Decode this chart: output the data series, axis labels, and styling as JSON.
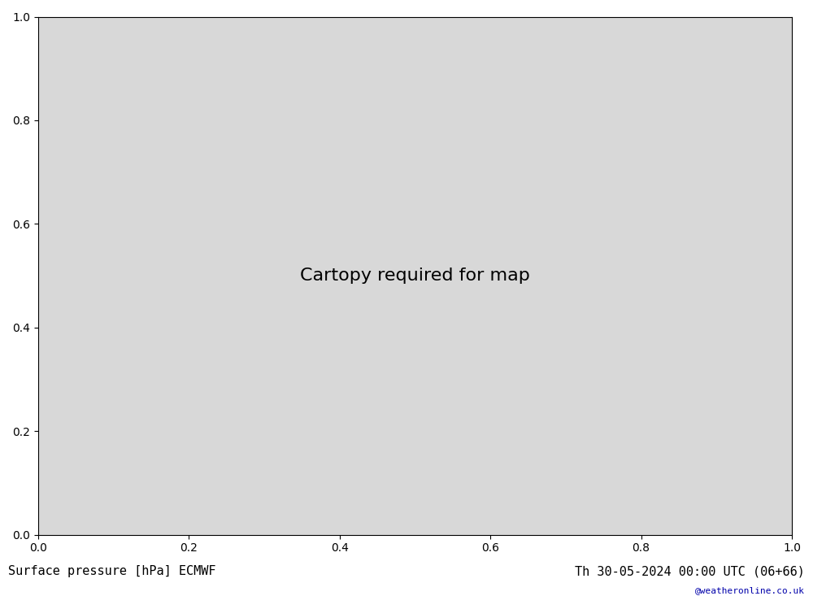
{
  "title_left": "Surface pressure [hPa] ECMWF",
  "title_right": "Th 30-05-2024 00:00 UTC (06+66)",
  "watermark": "@weatheronline.co.uk",
  "land_color": "#c8e6a0",
  "ocean_color": "#d8d8d8",
  "background_color": "#d0d0d0",
  "contour_color_black": "#000000",
  "contour_color_blue": "#0000cc",
  "contour_color_red": "#cc0000",
  "label_fontsize": 9,
  "title_fontsize": 11,
  "watermark_color": "#0000aa"
}
